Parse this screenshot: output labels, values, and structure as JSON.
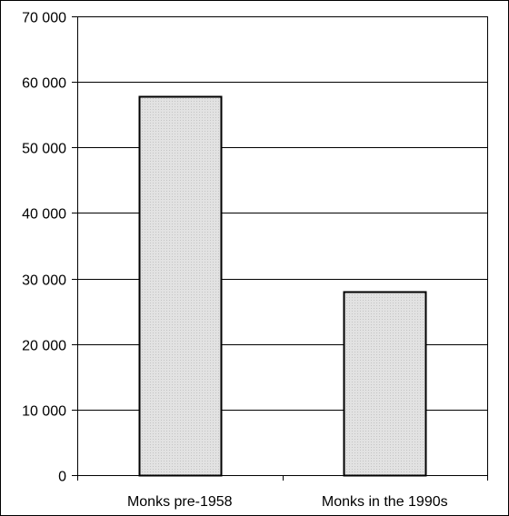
{
  "chart_data": {
    "type": "bar",
    "categories": [
      "Monks pre-1958",
      "Monks in the 1990s"
    ],
    "values": [
      57800,
      28000
    ],
    "title": "",
    "xlabel": "",
    "ylabel": "",
    "ylim": [
      0,
      70000
    ],
    "yticks": [
      0,
      10000,
      20000,
      30000,
      40000,
      50000,
      60000,
      70000
    ],
    "ytick_labels": [
      "0",
      "10 000",
      "20 000",
      "30 000",
      "40 000",
      "50 000",
      "60 000",
      "70 000"
    ],
    "grid": true,
    "legend": "none",
    "bar_color": "#e2e2e2",
    "bar_edge_color": "#000000",
    "grid_color": "#000000"
  }
}
